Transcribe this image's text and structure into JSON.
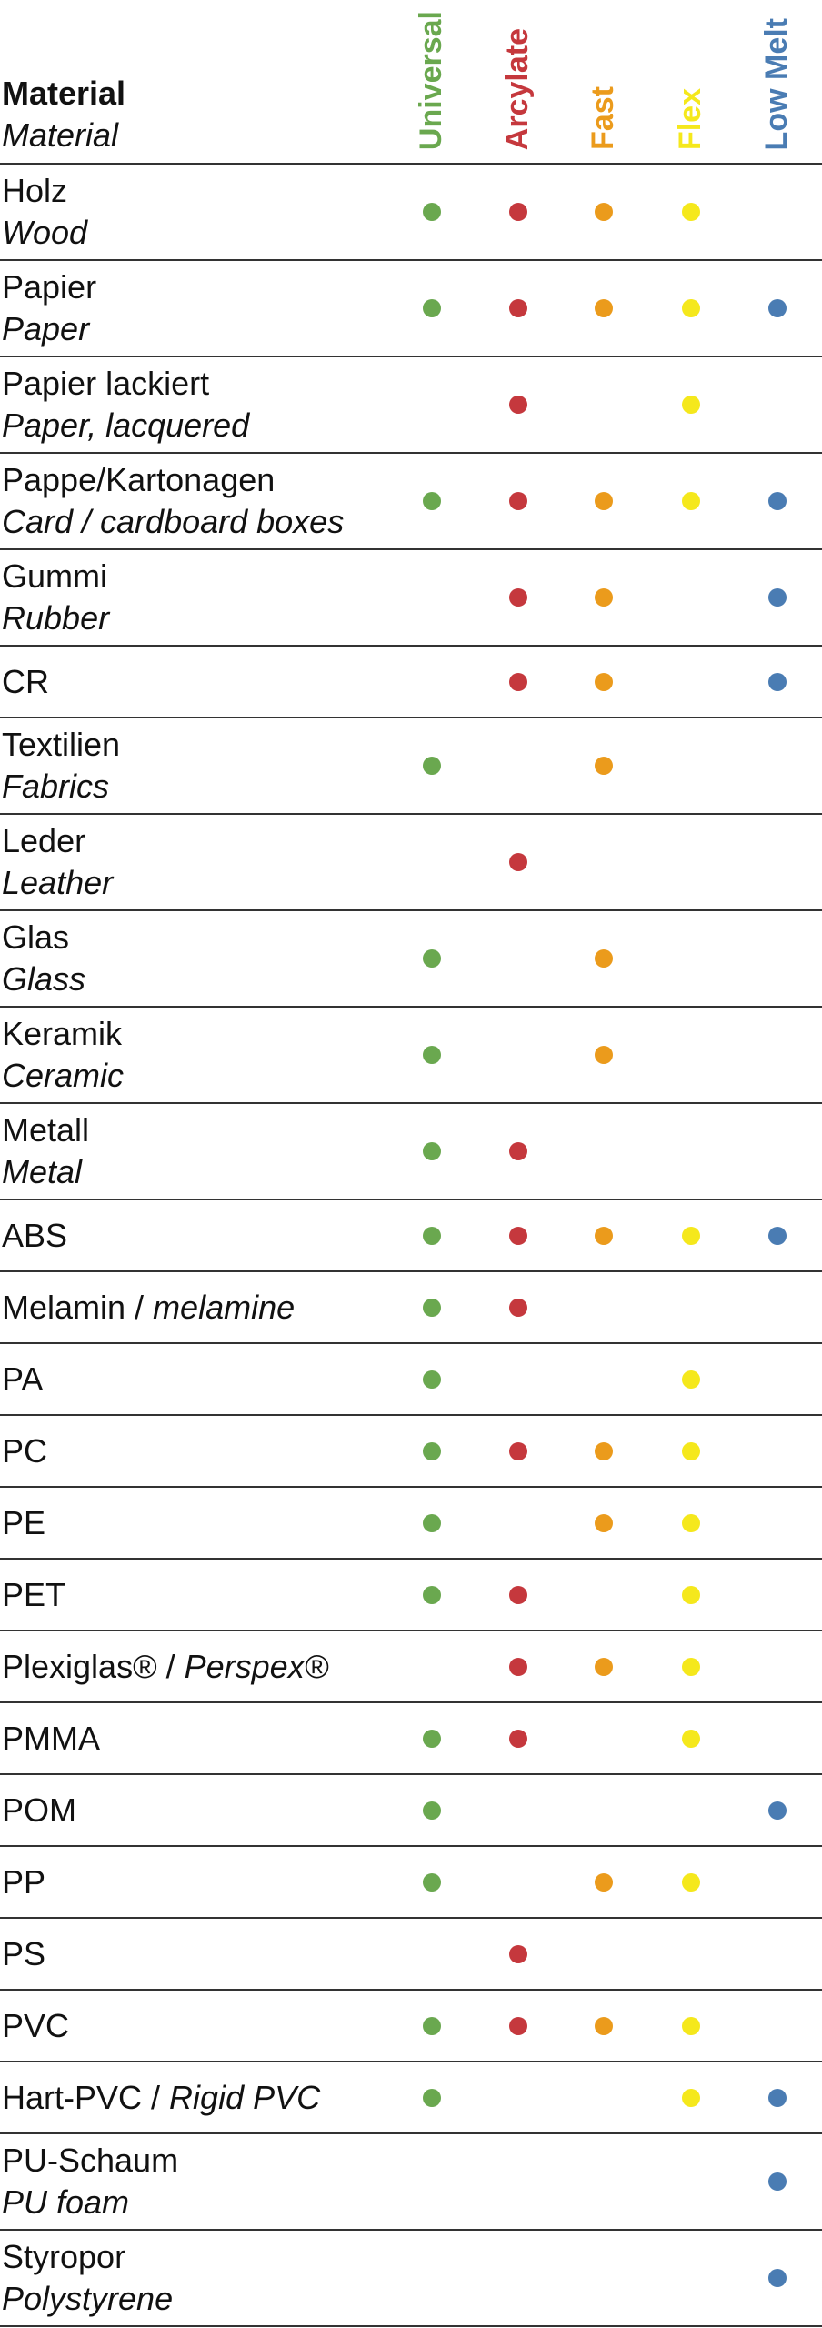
{
  "header": {
    "title": "Material",
    "subtitle": "Material"
  },
  "columns": [
    {
      "label": "Universal",
      "color": "#6aa84f"
    },
    {
      "label": "Arcylate",
      "color": "#c5383d"
    },
    {
      "label": "Fast",
      "color": "#eb9b1c"
    },
    {
      "label": "Flex",
      "color": "#f5e81c"
    },
    {
      "label": "Low Melt",
      "color": "#4a7cb3"
    }
  ],
  "rows": [
    {
      "de": "Holz",
      "en": "Wood",
      "marks": [
        true,
        true,
        true,
        true,
        false
      ]
    },
    {
      "de": "Papier",
      "en": "Paper",
      "marks": [
        true,
        true,
        true,
        true,
        true
      ]
    },
    {
      "de": "Papier lackiert",
      "en": "Paper, lacquered",
      "marks": [
        false,
        true,
        false,
        true,
        false
      ]
    },
    {
      "de": "Pappe/Kartonagen",
      "en": "Card / cardboard boxes",
      "marks": [
        true,
        true,
        true,
        true,
        true
      ]
    },
    {
      "de": "Gummi",
      "en": "Rubber",
      "marks": [
        false,
        true,
        true,
        false,
        true
      ]
    },
    {
      "de": "CR",
      "marks": [
        false,
        true,
        true,
        false,
        true
      ]
    },
    {
      "de": "Textilien",
      "en": "Fabrics",
      "marks": [
        true,
        false,
        true,
        false,
        false
      ]
    },
    {
      "de": "Leder",
      "en": "Leather",
      "marks": [
        false,
        true,
        false,
        false,
        false
      ]
    },
    {
      "de": "Glas",
      "en": "Glass",
      "marks": [
        true,
        false,
        true,
        false,
        false
      ]
    },
    {
      "de": "Keramik",
      "en": "Ceramic",
      "marks": [
        true,
        false,
        true,
        false,
        false
      ]
    },
    {
      "de": "Metall",
      "en": "Metal",
      "marks": [
        true,
        true,
        false,
        false,
        false
      ]
    },
    {
      "de": "ABS",
      "marks": [
        true,
        true,
        true,
        true,
        true
      ]
    },
    {
      "de": "Melamin /",
      "en": "melamine",
      "inline": true,
      "marks": [
        true,
        true,
        false,
        false,
        false
      ]
    },
    {
      "de": "PA",
      "marks": [
        true,
        false,
        false,
        true,
        false
      ]
    },
    {
      "de": "PC",
      "marks": [
        true,
        true,
        true,
        true,
        false
      ]
    },
    {
      "de": "PE",
      "marks": [
        true,
        false,
        true,
        true,
        false
      ]
    },
    {
      "de": "PET",
      "marks": [
        true,
        true,
        false,
        true,
        false
      ]
    },
    {
      "de": "Plexiglas® /",
      "en": "Perspex®",
      "inline": true,
      "marks": [
        false,
        true,
        true,
        true,
        false
      ]
    },
    {
      "de": "PMMA",
      "marks": [
        true,
        true,
        false,
        true,
        false
      ]
    },
    {
      "de": "POM",
      "marks": [
        true,
        false,
        false,
        false,
        true
      ]
    },
    {
      "de": "PP",
      "marks": [
        true,
        false,
        true,
        true,
        false
      ]
    },
    {
      "de": "PS",
      "marks": [
        false,
        true,
        false,
        false,
        false
      ]
    },
    {
      "de": "PVC",
      "marks": [
        true,
        true,
        true,
        true,
        false
      ]
    },
    {
      "de": "Hart-PVC /",
      "en": "Rigid PVC",
      "inline": true,
      "marks": [
        true,
        false,
        false,
        true,
        true
      ]
    },
    {
      "de": "PU-Schaum",
      "en": "PU foam",
      "marks": [
        false,
        false,
        false,
        false,
        true
      ]
    },
    {
      "de": "Styropor",
      "en": "Polystyrene",
      "marks": [
        false,
        false,
        false,
        false,
        true
      ]
    }
  ]
}
